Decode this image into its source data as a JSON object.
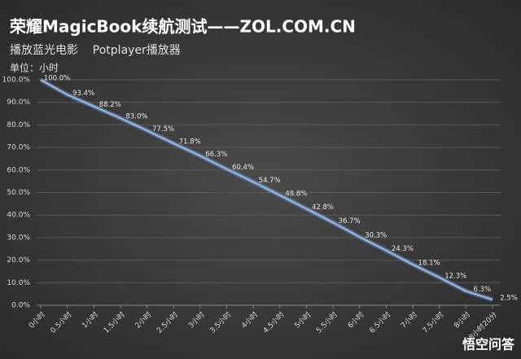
{
  "chart_data": {
    "type": "line",
    "title": "荣耀MagicBook续航测试——ZOL.COM.CN",
    "subtitle": "播放蓝光电影    Potplayer播放器",
    "unit_label": "单位：小时",
    "watermark": "悟空问答",
    "categories": [
      "0小时",
      "0.5小时",
      "1小时",
      "1.5小时",
      "2小时",
      "2.5小时",
      "3小时",
      "3.5小时",
      "4小时",
      "4.5小时",
      "5小时",
      "5.5小时",
      "6小时",
      "6.5小时",
      "7小时",
      "7.5小时",
      "8小时",
      "8小时20分"
    ],
    "values": [
      100.0,
      93.4,
      88.2,
      83.0,
      77.5,
      71.8,
      66.3,
      60.4,
      54.7,
      48.8,
      42.8,
      36.7,
      30.3,
      24.3,
      18.1,
      12.3,
      6.3,
      2.5
    ],
    "value_labels": [
      "100.0%",
      "93.4%",
      "88.2%",
      "83.0%",
      "77.5%",
      "71.8%",
      "66.3%",
      "60.4%",
      "54.7%",
      "48.8%",
      "42.8%",
      "36.7%",
      "30.3%",
      "24.3%",
      "18.1%",
      "12.3%",
      "6.3%",
      "2.5%"
    ],
    "color": "#8db4e6",
    "ylim": [
      0,
      100
    ],
    "yticks": [
      {
        "value": 0,
        "label": "0.0%"
      },
      {
        "value": 10,
        "label": "10.0%"
      },
      {
        "value": 20,
        "label": "20.0%"
      },
      {
        "value": 30,
        "label": "30.0%"
      },
      {
        "value": 40,
        "label": "40.0%"
      },
      {
        "value": 50,
        "label": "50.0%"
      },
      {
        "value": 60,
        "label": "60.0%"
      },
      {
        "value": 70,
        "label": "70.0%"
      },
      {
        "value": 80,
        "label": "80.0%"
      },
      {
        "value": 90,
        "label": "90.0%"
      },
      {
        "value": 100,
        "label": "100.0%"
      }
    ],
    "grid": true
  }
}
